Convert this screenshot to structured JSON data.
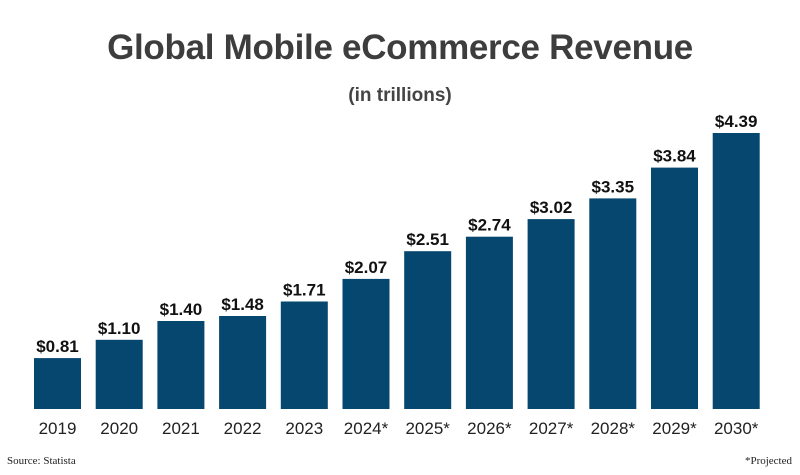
{
  "chart_data": {
    "type": "bar",
    "title": "Global Mobile eCommerce Revenue",
    "subtitle": "(in trillions)",
    "categories": [
      "2019",
      "2020",
      "2021",
      "2022",
      "2023",
      "2024*",
      "2025*",
      "2026*",
      "2027*",
      "2028*",
      "2029*",
      "2030*"
    ],
    "values": [
      0.81,
      1.1,
      1.4,
      1.48,
      1.71,
      2.07,
      2.51,
      2.74,
      3.02,
      3.35,
      3.84,
      4.39
    ],
    "value_labels": [
      "$0.81",
      "$1.10",
      "$1.40",
      "$1.48",
      "$1.71",
      "$2.07",
      "$2.51",
      "$2.74",
      "$3.02",
      "$3.35",
      "$3.84",
      "$4.39"
    ],
    "xlabel": "",
    "ylabel": "",
    "ylim": [
      0,
      4.39
    ],
    "grid": false,
    "legend": "none",
    "bar_color": "#05476f"
  },
  "footer": {
    "source": "Source: Statista",
    "note": "*Projected"
  }
}
